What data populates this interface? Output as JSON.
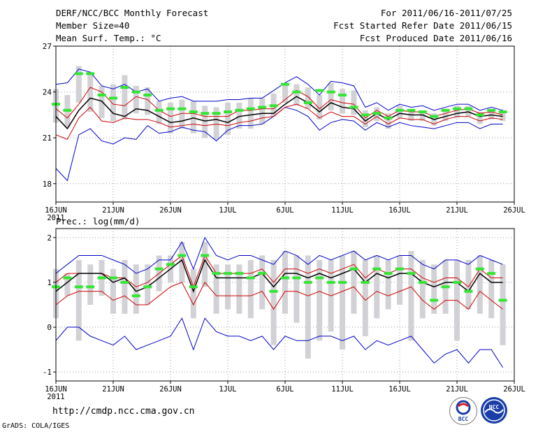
{
  "header": {
    "title": "DERF/NCC/BCC Monthly Forecast",
    "member_size": "Member Size=40",
    "variable": "Mean Surf. Temp.: °C",
    "period": "For 2011/06/16-2011/07/25",
    "start_date": "Fcst Started Refer Date 2011/06/15",
    "produced_date": "Fcst Produced Date 2011/06/16"
  },
  "footer": {
    "url": "http://cmdp.ncc.cma.gov.cn",
    "credit": "GrADS: COLA/IGES",
    "logo_bcc": "BCC",
    "logo_ncc": "NCC"
  },
  "colors": {
    "mean": "#000000",
    "upper_bound": "#0000cc",
    "lower_bound": "#0000cc",
    "plus_sd": "#cc0000",
    "minus_sd": "#cc0000",
    "box": "#d2d2d6",
    "median": "#33e633",
    "grid": "#999999"
  },
  "chart_data": [
    {
      "type": "line",
      "name": "temperature",
      "ylabel": "Mean Surf. Temp.: °C",
      "ylim": [
        16.8,
        27
      ],
      "yticks": [
        18,
        21,
        24,
        27
      ],
      "xlim": [
        16,
        56
      ],
      "xticks": [
        16,
        21,
        26,
        31,
        36,
        41,
        46,
        51,
        56
      ],
      "xticklabels": [
        "16JUN",
        "21JUN",
        "26JUN",
        "1JUL",
        "6JUL",
        "11JUL",
        "16JUL",
        "21JUL",
        "26JUL"
      ],
      "xsublabel": "2011",
      "grid": true,
      "x": [
        16,
        17,
        18,
        19,
        20,
        21,
        22,
        23,
        24,
        25,
        26,
        27,
        28,
        29,
        30,
        31,
        32,
        33,
        34,
        35,
        36,
        37,
        38,
        39,
        40,
        41,
        42,
        43,
        44,
        45,
        46,
        47,
        48,
        49,
        50,
        51,
        52,
        53,
        54,
        55
      ],
      "mean": [
        22.4,
        21.6,
        22.8,
        23.6,
        23.4,
        22.6,
        22.4,
        22.9,
        22.8,
        22.4,
        22.0,
        22.1,
        22.3,
        22.1,
        22.2,
        22.0,
        22.4,
        22.5,
        22.6,
        22.6,
        23.2,
        23.7,
        23.3,
        22.7,
        23.3,
        23.0,
        22.9,
        22.1,
        22.6,
        22.2,
        22.6,
        22.5,
        22.5,
        22.2,
        22.4,
        22.6,
        22.7,
        22.4,
        22.5,
        22.4
      ],
      "upper_bound": [
        24.5,
        24.6,
        25.5,
        25.3,
        24.4,
        24.2,
        24.5,
        24.0,
        24.2,
        23.4,
        23.6,
        23.7,
        23.4,
        23.4,
        23.4,
        23.5,
        23.5,
        23.6,
        23.6,
        24.1,
        24.6,
        25.0,
        24.5,
        23.8,
        24.7,
        24.6,
        24.4,
        23.0,
        23.3,
        22.8,
        23.2,
        23.0,
        23.1,
        22.8,
        23.0,
        23.2,
        23.2,
        22.8,
        23.0,
        22.8
      ],
      "lower_bound": [
        19.0,
        18.2,
        21.2,
        21.6,
        20.8,
        20.6,
        21.0,
        20.9,
        21.8,
        21.3,
        21.4,
        21.7,
        21.5,
        21.4,
        20.8,
        21.5,
        21.8,
        21.8,
        21.9,
        22.4,
        23.0,
        22.8,
        22.4,
        21.5,
        22.0,
        22.2,
        22.1,
        21.5,
        22.0,
        21.7,
        22.0,
        21.8,
        21.7,
        21.6,
        21.8,
        22.0,
        22.0,
        21.6,
        21.9,
        21.9
      ],
      "plus_sd": [
        22.9,
        22.3,
        23.2,
        24.3,
        24.0,
        23.2,
        23.1,
        23.7,
        23.5,
        22.8,
        22.4,
        22.6,
        22.6,
        22.4,
        22.4,
        22.4,
        22.8,
        22.8,
        22.9,
        22.9,
        23.5,
        24.1,
        23.7,
        22.9,
        23.5,
        23.3,
        23.2,
        22.3,
        22.8,
        22.4,
        22.8,
        22.7,
        22.7,
        22.4,
        22.6,
        22.8,
        22.9,
        22.6,
        22.7,
        22.5
      ],
      "minus_sd": [
        21.2,
        20.9,
        22.3,
        23.0,
        22.1,
        22.0,
        22.3,
        22.2,
        22.2,
        22.0,
        21.7,
        21.8,
        21.9,
        21.8,
        21.9,
        21.8,
        22.0,
        22.1,
        22.3,
        22.4,
        23.0,
        23.2,
        22.9,
        22.3,
        22.7,
        22.4,
        22.4,
        21.9,
        22.4,
        21.9,
        22.3,
        22.2,
        22.2,
        21.9,
        22.2,
        22.4,
        22.4,
        22.1,
        22.3,
        22.2
      ],
      "box_high": [
        24.2,
        23.8,
        25.7,
        25.3,
        24.4,
        24.5,
        25.1,
        24.4,
        24.3,
        23.4,
        23.3,
        23.5,
        23.4,
        23.1,
        23.0,
        23.3,
        23.3,
        23.6,
        23.6,
        23.9,
        24.6,
        24.5,
        24.3,
        23.8,
        24.6,
        24.2,
        24.1,
        22.8,
        23.0,
        22.6,
        23.1,
        22.8,
        22.8,
        22.6,
        22.9,
        23.1,
        23.1,
        22.7,
        22.9,
        22.8
      ],
      "box_low": [
        22.0,
        21.7,
        23.3,
        22.7,
        22.3,
        22.1,
        22.2,
        22.6,
        22.5,
        21.9,
        21.3,
        21.6,
        21.3,
        21.0,
        20.9,
        21.2,
        21.6,
        21.6,
        21.9,
        22.4,
        23.3,
        23.1,
        22.9,
        22.2,
        22.8,
        22.6,
        22.5,
        21.7,
        22.1,
        21.6,
        22.3,
        22.1,
        22.1,
        21.8,
        22.1,
        22.3,
        22.4,
        21.9,
        22.2,
        22.1
      ],
      "median": [
        23.2,
        22.8,
        25.2,
        25.2,
        23.8,
        23.6,
        24.3,
        24.0,
        23.8,
        22.8,
        22.9,
        22.9,
        22.7,
        22.6,
        22.6,
        22.7,
        22.8,
        22.9,
        23.0,
        23.1,
        24.5,
        24.0,
        23.3,
        24.1,
        24.0,
        23.8,
        23.0,
        22.5,
        22.6,
        22.3,
        22.8,
        22.8,
        22.7,
        22.4,
        22.8,
        22.9,
        22.9,
        22.5,
        22.8,
        22.7
      ]
    },
    {
      "type": "line",
      "name": "precipitation",
      "ylabel": "Prec.: log(mm/d)",
      "ylim": [
        -1.2,
        2.2
      ],
      "yticks": [
        -1,
        0,
        1,
        2
      ],
      "xlim": [
        16,
        56
      ],
      "xticks": [
        16,
        21,
        26,
        31,
        36,
        41,
        46,
        51,
        56
      ],
      "xticklabels": [
        "16JUN",
        "21JUN",
        "26JUN",
        "1JUL",
        "6JUL",
        "11JUL",
        "16JUL",
        "21JUL",
        "26JUL"
      ],
      "xsublabel": "2011",
      "grid": true,
      "x": [
        16,
        17,
        18,
        19,
        20,
        21,
        22,
        23,
        24,
        25,
        26,
        27,
        28,
        29,
        30,
        31,
        32,
        33,
        34,
        35,
        36,
        37,
        38,
        39,
        40,
        41,
        42,
        43,
        44,
        45,
        46,
        47,
        48,
        49,
        50,
        51,
        52,
        53,
        54,
        55
      ],
      "mean": [
        0.8,
        1.0,
        1.2,
        1.2,
        1.2,
        1.0,
        1.1,
        0.8,
        0.9,
        1.1,
        1.3,
        1.5,
        0.8,
        1.5,
        1.1,
        1.1,
        1.1,
        1.1,
        1.2,
        0.9,
        1.2,
        1.2,
        1.1,
        1.2,
        1.1,
        1.2,
        1.3,
        1.0,
        1.2,
        1.1,
        1.2,
        1.2,
        1.0,
        0.9,
        1.0,
        1.0,
        0.8,
        1.2,
        1.0,
        1.0
      ],
      "upper_bound": [
        1.2,
        1.4,
        1.6,
        1.6,
        1.6,
        1.5,
        1.4,
        1.2,
        1.3,
        1.5,
        1.5,
        1.9,
        1.3,
        2.0,
        1.6,
        1.5,
        1.6,
        1.6,
        1.5,
        1.4,
        1.7,
        1.6,
        1.4,
        1.6,
        1.5,
        1.6,
        1.7,
        1.5,
        1.6,
        1.5,
        1.6,
        1.6,
        1.4,
        1.3,
        1.5,
        1.5,
        1.4,
        1.6,
        1.5,
        1.4
      ],
      "lower_bound": [
        -0.3,
        0.0,
        0.0,
        -0.2,
        -0.3,
        -0.4,
        -0.2,
        -0.5,
        -0.4,
        -0.3,
        -0.2,
        0.2,
        -0.5,
        0.2,
        -0.1,
        -0.2,
        -0.2,
        -0.3,
        -0.2,
        -0.5,
        -0.2,
        -0.3,
        -0.3,
        -0.2,
        -0.2,
        -0.3,
        -0.2,
        -0.5,
        -0.3,
        -0.4,
        -0.3,
        -0.2,
        -0.5,
        -0.8,
        -0.6,
        -0.5,
        -0.8,
        -0.5,
        -0.5,
        -0.9
      ],
      "plus_sd": [
        1.0,
        1.2,
        1.2,
        1.2,
        1.2,
        1.1,
        1.1,
        0.9,
        1.0,
        1.2,
        1.4,
        1.6,
        0.9,
        1.6,
        1.2,
        1.2,
        1.2,
        1.2,
        1.3,
        1.0,
        1.3,
        1.3,
        1.2,
        1.3,
        1.2,
        1.3,
        1.4,
        1.1,
        1.3,
        1.2,
        1.3,
        1.3,
        1.1,
        1.0,
        1.1,
        1.1,
        0.9,
        1.3,
        1.1,
        1.1
      ],
      "minus_sd": [
        0.5,
        0.7,
        0.8,
        0.8,
        0.8,
        0.6,
        0.7,
        0.5,
        0.5,
        0.7,
        0.9,
        1.0,
        0.5,
        1.0,
        0.7,
        0.7,
        0.7,
        0.7,
        0.8,
        0.4,
        0.8,
        0.8,
        0.7,
        0.8,
        0.7,
        0.8,
        0.9,
        0.6,
        0.8,
        0.7,
        0.8,
        0.9,
        0.6,
        0.4,
        0.6,
        0.6,
        0.4,
        0.8,
        0.6,
        0.4
      ],
      "box_high": [
        1.3,
        1.2,
        1.5,
        1.4,
        1.5,
        1.3,
        1.5,
        1.4,
        1.4,
        1.6,
        1.6,
        1.9,
        1.3,
        1.9,
        1.4,
        1.4,
        1.4,
        1.5,
        1.6,
        1.5,
        1.7,
        1.6,
        1.6,
        1.5,
        1.5,
        1.6,
        1.7,
        1.5,
        1.6,
        1.5,
        1.6,
        1.7,
        1.5,
        1.4,
        1.5,
        1.5,
        1.5,
        1.6,
        1.5,
        1.4
      ],
      "box_low": [
        0.2,
        0.7,
        -0.3,
        0.5,
        0.7,
        0.3,
        0.3,
        0.3,
        0.5,
        0.8,
        1.0,
        1.0,
        0.2,
        0.9,
        0.3,
        0.4,
        0.3,
        0.2,
        0.4,
        -0.4,
        0.3,
        0.1,
        -0.7,
        -0.3,
        -0.1,
        -0.5,
        0.3,
        -0.2,
        0.2,
        0.4,
        0.5,
        -0.3,
        0.2,
        0.3,
        0.3,
        -0.3,
        0.4,
        0.3,
        0.2,
        -0.4
      ],
      "median": [
        0.9,
        1.1,
        0.9,
        0.9,
        1.1,
        1.1,
        1.0,
        0.7,
        0.9,
        1.3,
        1.4,
        1.6,
        0.9,
        1.6,
        1.2,
        1.2,
        1.2,
        1.1,
        1.2,
        0.8,
        1.1,
        1.1,
        1.0,
        1.1,
        1.0,
        1.0,
        1.3,
        1.0,
        1.3,
        1.2,
        1.3,
        1.2,
        1.0,
        0.6,
        0.9,
        1.0,
        0.8,
        1.3,
        1.2,
        0.6
      ]
    }
  ]
}
